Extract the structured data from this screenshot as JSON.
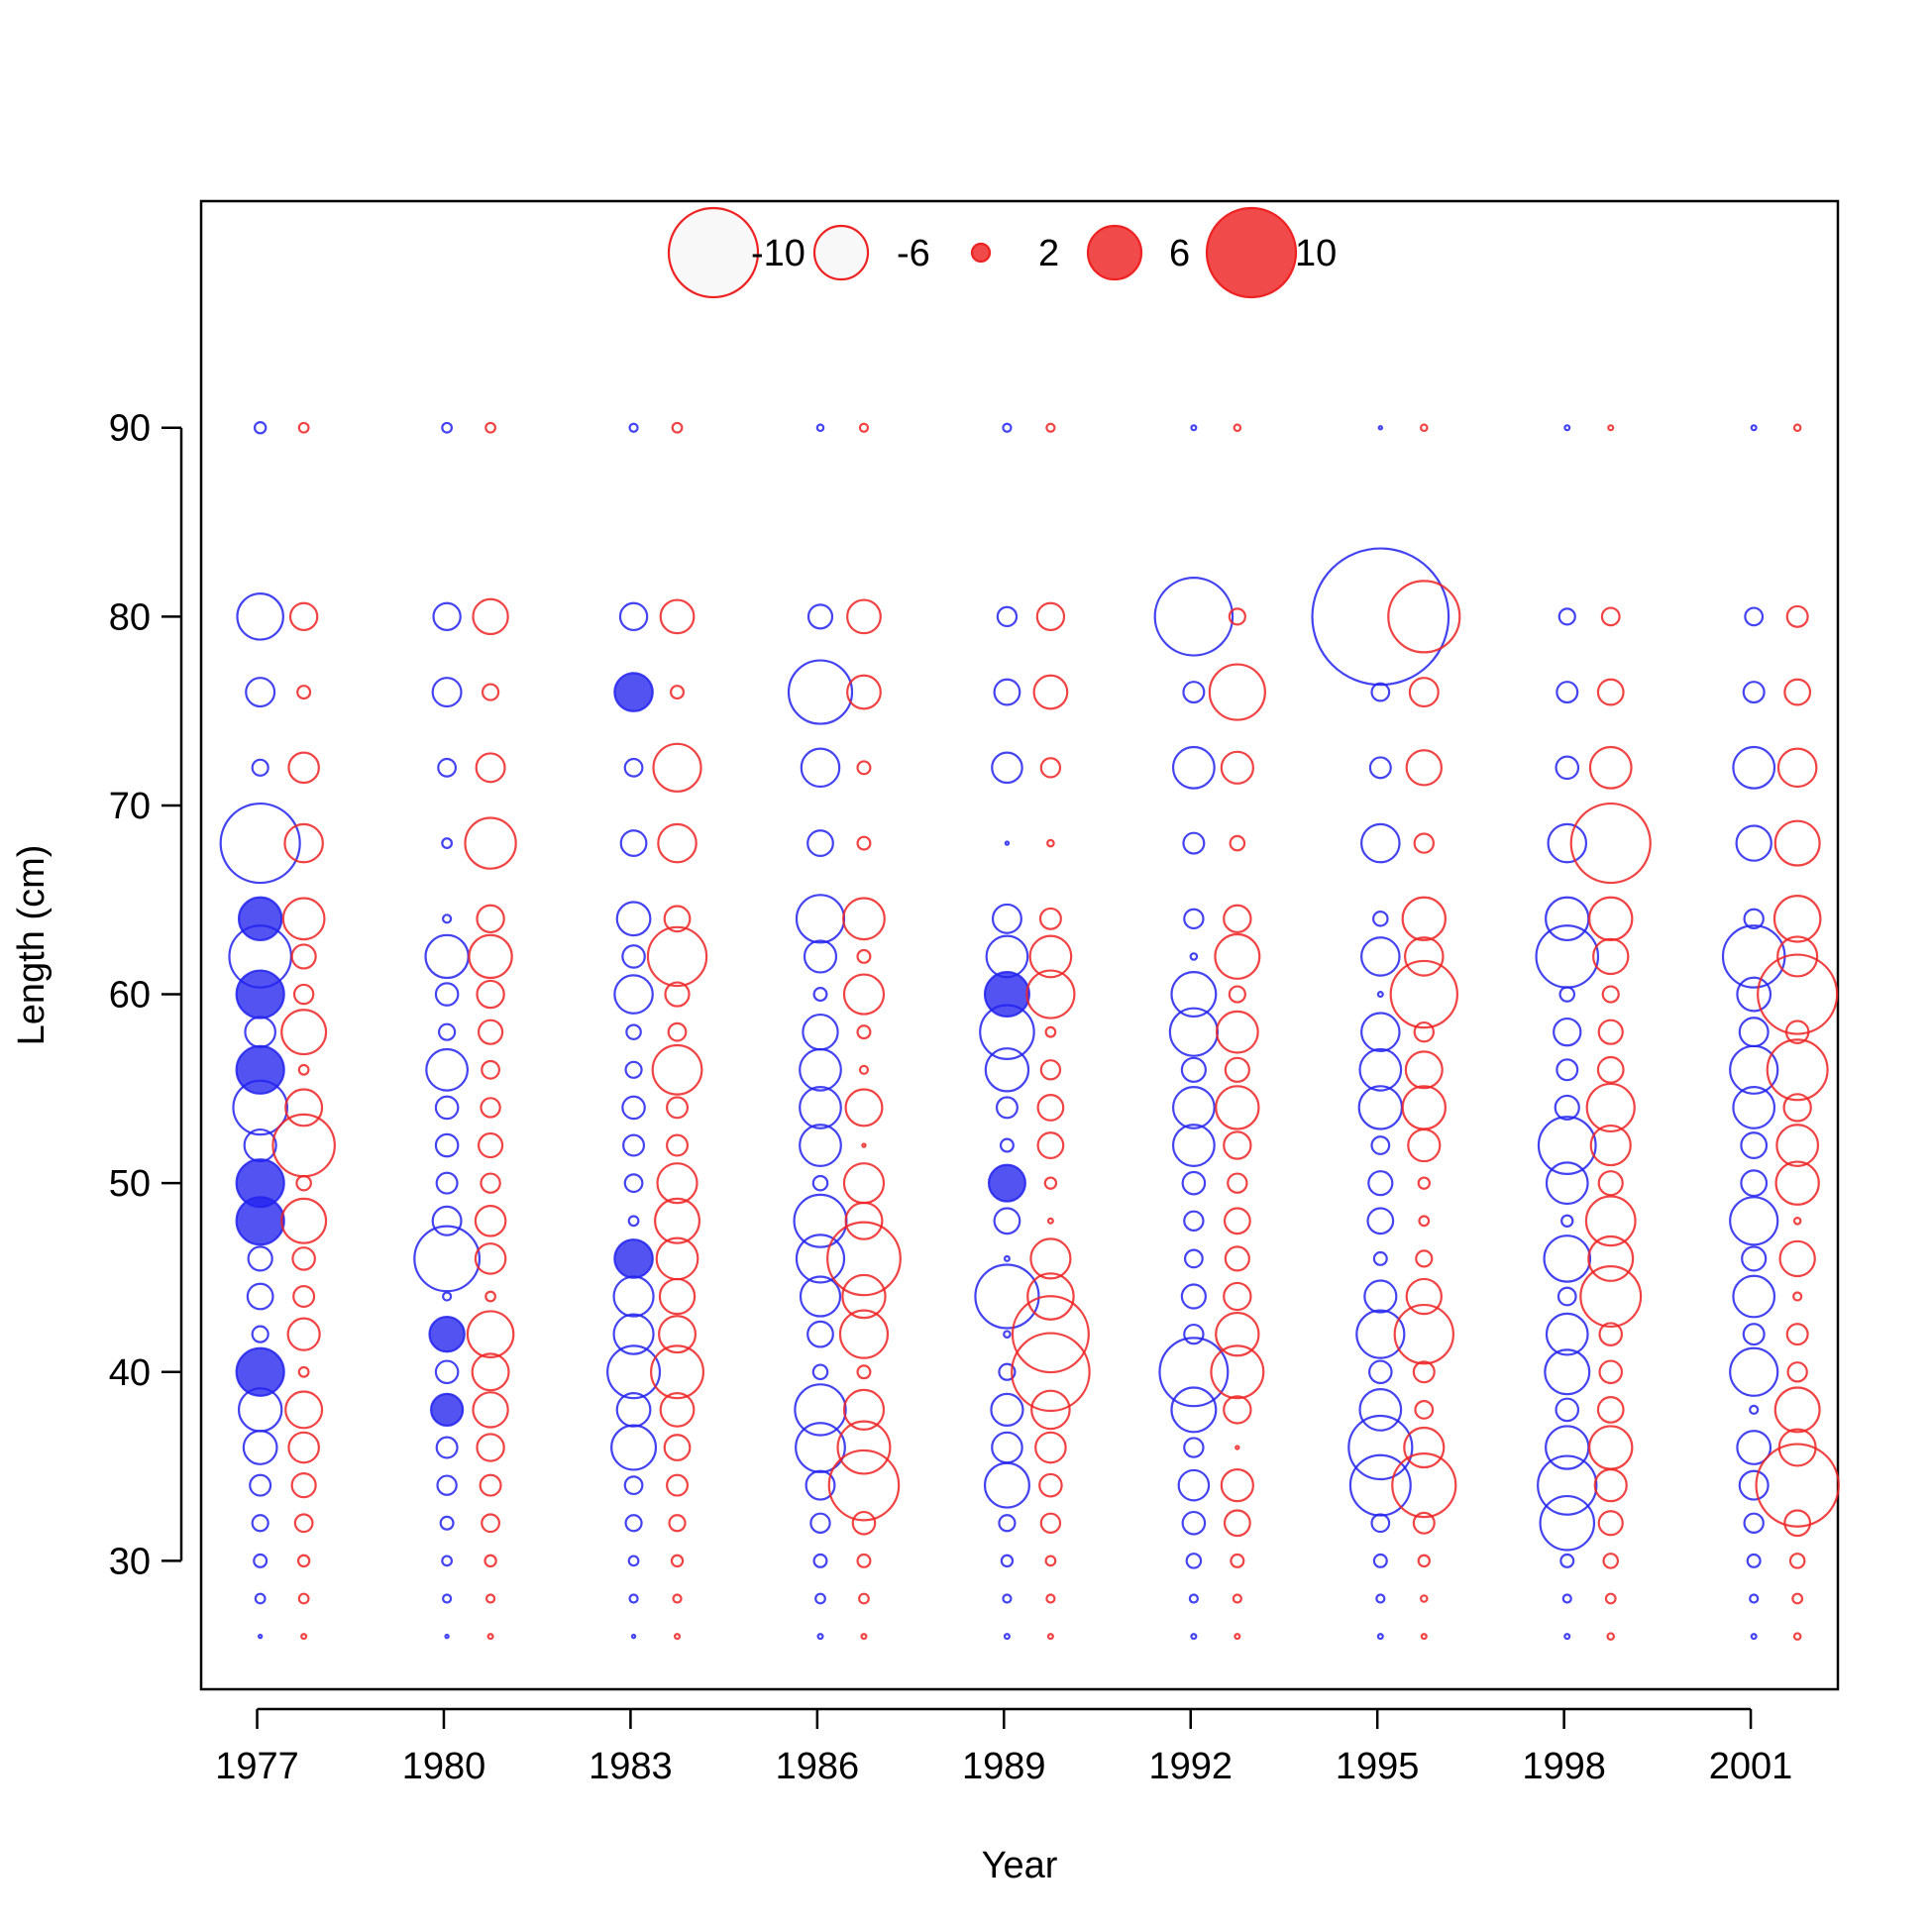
{
  "chart_data": {
    "type": "scatter",
    "subtype": "bubble",
    "title": "",
    "xlabel": "Year",
    "ylabel": "Length (cm)",
    "x_ticks": [
      1977,
      1980,
      1983,
      1986,
      1989,
      1992,
      1995,
      1998,
      2001
    ],
    "y_ticks": [
      30,
      40,
      50,
      60,
      70,
      80,
      90
    ],
    "xlim": [
      1976.1,
      2002.4
    ],
    "ylim": [
      23.2,
      102.0
    ],
    "grid": false,
    "legend": {
      "placement": "top-center",
      "entries": [
        {
          "label": "-10",
          "value": -10
        },
        {
          "label": "-6",
          "value": -6
        },
        {
          "label": "2",
          "value": 2
        },
        {
          "label": "6",
          "value": 6
        },
        {
          "label": "10",
          "value": 10
        }
      ]
    },
    "colors": {
      "series_a": "#2222ee",
      "series_b": "#ee2222",
      "legend_open_fill": "#f8f8f8"
    },
    "lengths": [
      26,
      28,
      30,
      32,
      34,
      36,
      38,
      40,
      42,
      44,
      46,
      48,
      50,
      52,
      54,
      56,
      58,
      60,
      62,
      64,
      68,
      72,
      76,
      80,
      90
    ],
    "series": [
      {
        "color": "#2222ee",
        "x_offset": 0.05,
        "points": [
          {
            "year": 1977,
            "values": [
              0.2,
              0.6,
              0.8,
              1.0,
              1.3,
              2.1,
              2.7,
              -3.0,
              1.0,
              1.6,
              1.5,
              -3.0,
              -3.0,
              2.0,
              3.4,
              -3.0,
              1.9,
              -3.0,
              3.9,
              -2.7,
              5.0,
              1.0,
              1.8,
              2.9,
              0.7
            ]
          },
          {
            "year": 1980,
            "values": [
              0.2,
              0.5,
              0.6,
              0.8,
              1.2,
              1.3,
              -2.0,
              1.4,
              -2.2,
              0.5,
              4.1,
              1.8,
              1.3,
              1.4,
              1.4,
              2.6,
              1.0,
              1.4,
              2.7,
              0.5,
              0.6,
              1.1,
              1.8,
              1.7,
              0.6
            ]
          },
          {
            "year": 1983,
            "values": [
              0.2,
              0.5,
              0.6,
              1.0,
              1.1,
              2.8,
              2.1,
              3.3,
              2.5,
              2.5,
              -2.4,
              0.6,
              1.1,
              1.3,
              1.4,
              1.0,
              0.9,
              2.4,
              1.4,
              2.1,
              1.6,
              1.1,
              -2.4,
              1.7,
              0.5
            ]
          },
          {
            "year": 1986,
            "values": [
              0.3,
              0.6,
              0.8,
              1.2,
              1.8,
              3.1,
              3.2,
              0.9,
              1.6,
              2.5,
              3.0,
              3.3,
              0.9,
              2.6,
              2.6,
              2.6,
              2.2,
              0.8,
              2.0,
              3.0,
              1.6,
              2.4,
              4.0,
              1.5,
              0.4
            ]
          },
          {
            "year": 1989,
            "values": [
              0.3,
              0.5,
              0.7,
              1.0,
              2.8,
              1.9,
              2.0,
              1.0,
              0.4,
              4.0,
              0.3,
              1.6,
              -2.3,
              0.8,
              1.3,
              2.7,
              3.4,
              -2.8,
              2.6,
              1.8,
              0.2,
              1.9,
              1.6,
              1.2,
              0.5
            ]
          },
          {
            "year": 1992,
            "values": [
              0.3,
              0.5,
              0.9,
              1.4,
              1.9,
              1.2,
              2.8,
              4.3,
              1.2,
              1.5,
              1.1,
              1.2,
              1.4,
              2.6,
              2.6,
              1.5,
              3.0,
              2.8,
              0.4,
              1.2,
              1.3,
              2.6,
              1.3,
              4.9,
              0.3
            ]
          },
          {
            "year": 1995,
            "values": [
              0.3,
              0.5,
              0.8,
              1.1,
              3.8,
              4.0,
              2.6,
              1.4,
              3.0,
              2.0,
              0.8,
              1.6,
              1.5,
              1.1,
              2.7,
              2.6,
              2.4,
              0.3,
              2.4,
              0.9,
              2.4,
              1.3,
              1.1,
              8.6,
              0.2
            ]
          },
          {
            "year": 1998,
            "values": [
              0.3,
              0.5,
              0.8,
              3.4,
              3.7,
              2.7,
              1.4,
              2.8,
              2.6,
              1.1,
              2.9,
              0.7,
              2.6,
              3.6,
              1.5,
              1.3,
              1.7,
              0.9,
              3.9,
              2.7,
              2.4,
              1.4,
              1.3,
              1.0,
              0.3
            ]
          },
          {
            "year": 2001,
            "values": [
              0.3,
              0.5,
              0.8,
              1.2,
              1.8,
              2.1,
              0.5,
              3.0,
              1.3,
              2.6,
              1.5,
              3.0,
              1.6,
              1.6,
              2.6,
              3.0,
              1.8,
              2.1,
              3.9,
              1.2,
              2.2,
              2.6,
              1.3,
              1.1,
              0.3
            ]
          }
        ]
      },
      {
        "color": "#ee2222",
        "x_offset": 0.75,
        "points": [
          {
            "year": 1977,
            "values": [
              0.3,
              0.6,
              0.7,
              1.1,
              1.5,
              1.9,
              2.3,
              0.6,
              2.0,
              1.3,
              1.4,
              2.8,
              0.9,
              3.9,
              2.3,
              0.6,
              2.8,
              1.2,
              1.5,
              2.6,
              2.4,
              1.9,
              0.8,
              1.7,
              0.6
            ]
          },
          {
            "year": 1980,
            "values": [
              0.3,
              0.5,
              0.7,
              1.1,
              1.3,
              1.7,
              2.2,
              2.3,
              2.9,
              0.6,
              1.9,
              1.9,
              1.2,
              1.5,
              1.2,
              1.1,
              1.5,
              1.7,
              2.7,
              1.7,
              3.2,
              1.8,
              1.0,
              2.2,
              0.6
            ]
          },
          {
            "year": 1983,
            "values": [
              0.3,
              0.5,
              0.7,
              1.0,
              1.3,
              1.6,
              2.1,
              3.3,
              2.3,
              2.2,
              2.6,
              2.8,
              2.5,
              1.3,
              1.3,
              3.1,
              1.1,
              1.5,
              3.7,
              1.6,
              2.4,
              3.0,
              0.8,
              2.1,
              0.6
            ]
          },
          {
            "year": 1986,
            "values": [
              0.3,
              0.6,
              0.8,
              1.4,
              4.4,
              3.3,
              2.5,
              0.8,
              3.0,
              2.7,
              4.6,
              2.3,
              2.5,
              0.2,
              2.3,
              0.5,
              0.8,
              2.5,
              0.8,
              2.6,
              0.8,
              0.8,
              2.1,
              2.1,
              0.5
            ]
          },
          {
            "year": 1989,
            "values": [
              0.3,
              0.5,
              0.6,
              1.2,
              1.4,
              1.9,
              2.4,
              4.9,
              4.8,
              2.9,
              2.5,
              0.3,
              0.7,
              1.6,
              1.6,
              1.2,
              0.6,
              3.0,
              2.6,
              1.3,
              0.4,
              1.2,
              2.1,
              1.7,
              0.5
            ]
          },
          {
            "year": 1992,
            "values": [
              0.3,
              0.5,
              0.8,
              1.6,
              2.0,
              0.2,
              1.7,
              3.3,
              2.7,
              1.7,
              1.5,
              1.6,
              1.2,
              1.7,
              2.7,
              1.5,
              2.6,
              1.0,
              2.8,
              1.7,
              0.9,
              2.0,
              3.5,
              1.0,
              0.4
            ]
          },
          {
            "year": 1995,
            "values": [
              0.3,
              0.4,
              0.7,
              1.3,
              4.0,
              2.5,
              1.1,
              1.3,
              3.7,
              2.2,
              1.0,
              0.6,
              0.7,
              2.0,
              2.7,
              2.3,
              1.2,
              4.2,
              2.4,
              2.7,
              1.2,
              2.2,
              1.8,
              4.5,
              0.4
            ]
          },
          {
            "year": 1998,
            "values": [
              0.4,
              0.6,
              0.9,
              1.5,
              2.0,
              2.7,
              1.6,
              1.4,
              1.4,
              3.8,
              2.8,
              3.1,
              1.5,
              2.5,
              3.0,
              1.6,
              1.5,
              1.0,
              2.2,
              2.7,
              5.0,
              2.6,
              1.6,
              1.1,
              0.3
            ]
          },
          {
            "year": 2001,
            "values": [
              0.4,
              0.6,
              0.9,
              1.6,
              5.2,
              2.3,
              2.8,
              1.2,
              1.3,
              0.5,
              2.2,
              0.4,
              2.7,
              2.6,
              1.7,
              3.8,
              1.4,
              5.0,
              2.5,
              2.9,
              2.8,
              2.4,
              1.6,
              1.3,
              0.4
            ]
          }
        ]
      }
    ]
  }
}
